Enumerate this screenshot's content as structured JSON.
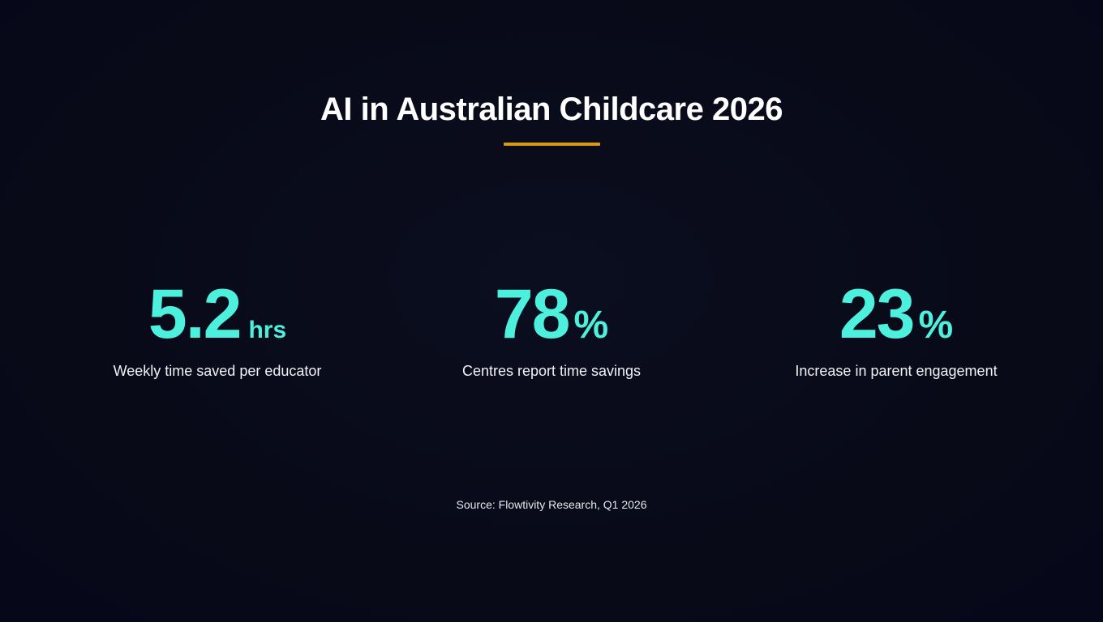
{
  "slide": {
    "title": "AI in Australian Childcare 2026",
    "source": "Source: Flowtivity Research, Q1 2026"
  },
  "stats": [
    {
      "value": "5.2",
      "unit": "hrs",
      "label": "Weekly time saved per educator"
    },
    {
      "value": "78",
      "unit": "%",
      "label": "Centres report time savings"
    },
    {
      "value": "23",
      "unit": "%",
      "label": "Increase in parent engagement"
    }
  ],
  "colors": {
    "background": "#080a18",
    "accent_stat": "#4df0dc",
    "title_rule": "#d99a14",
    "text": "#ffffff"
  }
}
